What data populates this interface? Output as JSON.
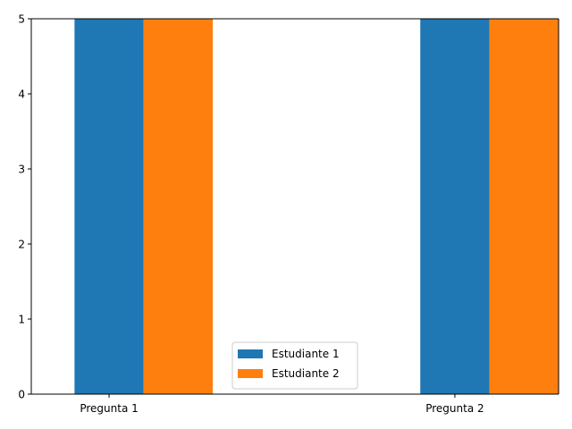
{
  "chart_data": {
    "type": "bar",
    "categories": [
      "Pregunta 1",
      "Pregunta 2"
    ],
    "series": [
      {
        "name": "Estudiante 1",
        "values": [
          5,
          5
        ],
        "color": "#1f77b4"
      },
      {
        "name": "Estudiante 2",
        "values": [
          5,
          5
        ],
        "color": "#ff7f0e"
      }
    ],
    "ylim": [
      0,
      5
    ],
    "yticks": [
      0,
      1,
      2,
      3,
      4,
      5
    ],
    "ytick_labels": [
      "0",
      "1",
      "2",
      "3",
      "4",
      "5"
    ],
    "grid": false,
    "legend_position": "lower center"
  }
}
